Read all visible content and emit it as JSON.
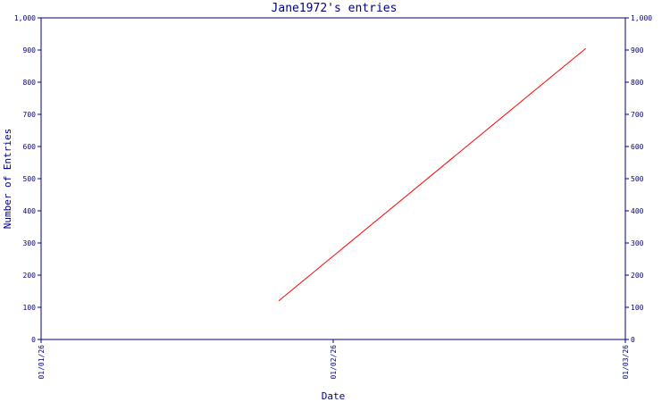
{
  "chart_data": {
    "type": "line",
    "title": "Jane1972's entries",
    "xlabel": "Date",
    "ylabel": "Number of Entries",
    "x_ticks": [
      "01/01/26",
      "01/02/26",
      "01/03/26"
    ],
    "y_ticks": [
      "0",
      "100",
      "200",
      "300",
      "400",
      "500",
      "600",
      "700",
      "800",
      "900",
      "1,000"
    ],
    "ylim": [
      0,
      1000
    ],
    "xlim": [
      "2026-01-01",
      "2026-03-01"
    ],
    "grid": false,
    "colors": {
      "axis": "#000080",
      "line": "#ff0000"
    },
    "series": [
      {
        "points": [
          {
            "x": "2026-01-25",
            "y": 120
          },
          {
            "x": "2026-02-25",
            "y": 905
          }
        ]
      }
    ]
  }
}
